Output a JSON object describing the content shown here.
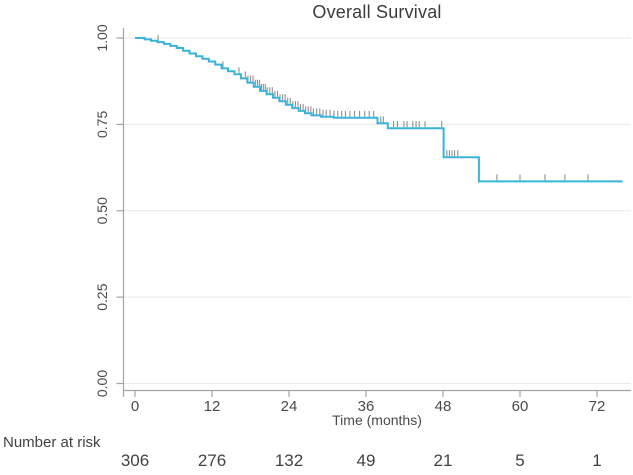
{
  "colors": {
    "curve": "#39b4d8",
    "censor": "#8f8f8f",
    "axis": "#a4a4a4",
    "grid": "#e9e9e9",
    "text": "#4a4a4a",
    "title_text": "#3c3c3c"
  },
  "chart_data": {
    "type": "line",
    "subtype": "kaplan_meier_step",
    "title": "Overall Survival",
    "xlabel": "Time (months)",
    "ylabel": "",
    "xlim": [
      0,
      77
    ],
    "ylim": [
      0,
      1
    ],
    "grid": "horizontal",
    "legend": "none",
    "x_ticks": [
      0,
      12,
      24,
      36,
      48,
      60,
      72
    ],
    "y_ticks": [
      {
        "value": 0,
        "label": "0.00"
      },
      {
        "value": 0.25,
        "label": "0.25"
      },
      {
        "value": 0.5,
        "label": "0.50"
      },
      {
        "value": 0.75,
        "label": "0.75"
      },
      {
        "value": 1,
        "label": "1.00"
      }
    ],
    "series": [
      {
        "name": "Overall survival",
        "step": true,
        "end_time": 76,
        "points": [
          [
            0,
            1
          ],
          [
            1.5,
            0.996
          ],
          [
            2.5,
            0.992
          ],
          [
            3.5,
            0.988
          ],
          [
            4.5,
            0.983
          ],
          [
            5.5,
            0.977
          ],
          [
            6.5,
            0.971
          ],
          [
            7.5,
            0.963
          ],
          [
            8.5,
            0.955
          ],
          [
            9.5,
            0.947
          ],
          [
            10.5,
            0.94
          ],
          [
            11.5,
            0.932
          ],
          [
            12.5,
            0.923
          ],
          [
            13.5,
            0.912
          ],
          [
            14.5,
            0.904
          ],
          [
            15.5,
            0.895
          ],
          [
            16.5,
            0.883
          ],
          [
            17.5,
            0.871
          ],
          [
            18.5,
            0.859
          ],
          [
            19.5,
            0.847
          ],
          [
            20.5,
            0.837
          ],
          [
            21.5,
            0.827
          ],
          [
            22.5,
            0.817
          ],
          [
            23.5,
            0.807
          ],
          [
            24.5,
            0.797
          ],
          [
            25.5,
            0.789
          ],
          [
            26.5,
            0.782
          ],
          [
            27.5,
            0.776
          ],
          [
            29,
            0.772
          ],
          [
            31,
            0.769
          ],
          [
            37.8,
            0.753
          ],
          [
            39.4,
            0.739
          ],
          [
            48.1,
            0.655
          ],
          [
            53.6,
            0.585
          ]
        ]
      }
    ],
    "censor_marks": {
      "times": [
        3.6,
        13.7,
        16.2,
        17.2,
        17.6,
        18,
        18.4,
        18.8,
        19.1,
        19.4,
        19.7,
        20,
        20.3,
        20.6,
        21,
        21.4,
        21.8,
        22.2,
        22.6,
        23,
        23.4,
        23.8,
        24.2,
        24.6,
        25,
        25.4,
        25.8,
        26.2,
        26.6,
        27,
        27.4,
        27.8,
        28.3,
        28.8,
        29.3,
        29.8,
        30.4,
        31,
        31.6,
        32.2,
        32.8,
        33.5,
        34.2,
        35,
        35.8,
        36.5,
        37.2,
        38.3,
        38.7,
        40.3,
        40.9,
        41.9,
        42.4,
        43.3,
        43.8,
        44.3,
        45.2,
        47.8,
        48.6,
        49,
        49.4,
        49.8,
        50.3,
        56.4,
        60,
        63.9,
        67,
        70.6
      ]
    },
    "number_at_risk": {
      "label": "Number at risk",
      "times": [
        0,
        12,
        24,
        36,
        48,
        60,
        72
      ],
      "values": [
        306,
        276,
        132,
        49,
        21,
        5,
        1
      ]
    }
  }
}
